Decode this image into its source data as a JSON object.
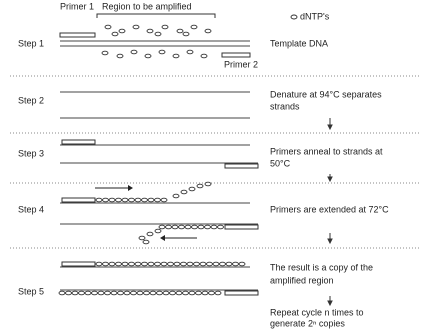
{
  "labels": {
    "primer1": "Primer 1",
    "region": "Region to be amplified",
    "dntps": "dNTP's",
    "primer2": "Primer 2"
  },
  "steps": [
    {
      "label": "Step 1",
      "description": [
        "Template DNA"
      ]
    },
    {
      "label": "Step 2",
      "description": [
        "Denature at 94°C separates",
        "strands"
      ]
    },
    {
      "label": "Step 3",
      "description": [
        "Primers anneal to strands at",
        "50°C"
      ]
    },
    {
      "label": "Step 4",
      "description": [
        "Primers are extended at 72°C"
      ]
    },
    {
      "label": "Step 5",
      "description": [
        "The result is a copy of the",
        "amplified region"
      ]
    }
  ],
  "footer": [
    "Repeat cycle n times to",
    "generate 2ⁿ copies"
  ]
}
